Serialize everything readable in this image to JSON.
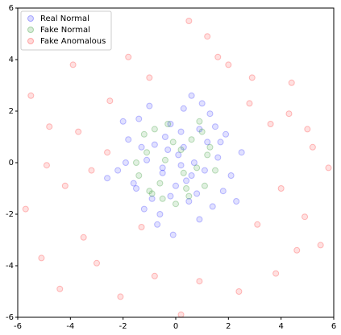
{
  "chart_data": {
    "type": "scatter",
    "xlim": [
      -6,
      6
    ],
    "ylim": [
      -6,
      6
    ],
    "xticks": [
      -6,
      -4,
      -2,
      0,
      2,
      4,
      6
    ],
    "yticks": [
      -6,
      -4,
      -2,
      0,
      2,
      4,
      6
    ],
    "legend": "upper left",
    "series": [
      {
        "name": "Real Normal",
        "color": "blue",
        "x": [
          0.1,
          -0.5,
          1.2,
          -1.3,
          0.8,
          -0.2,
          0.4,
          -0.9,
          1.6,
          -1.8,
          0.3,
          -0.6,
          2.1,
          -2.2,
          0.9,
          -1.1,
          0.0,
          1.4,
          -0.3,
          0.6,
          -1.5,
          1.9,
          -0.7,
          0.2,
          1.1,
          -2.0,
          0.5,
          -1.0,
          2.5,
          -0.4,
          1.3,
          -1.6,
          0.7,
          -0.1,
          1.8,
          -2.6,
          0.2,
          -0.8,
          1.0,
          -1.2,
          2.3,
          -0.5,
          0.9,
          -1.9,
          1.5,
          0.3,
          -0.2,
          1.7,
          -1.4,
          0.6
        ],
        "values": [
          0.3,
          -0.4,
          0.8,
          0.6,
          -1.2,
          1.5,
          -0.7,
          -1.4,
          0.2,
          0.9,
          2.1,
          -2.0,
          -0.5,
          -0.3,
          1.3,
          0.1,
          -0.9,
          -1.7,
          0.5,
          2.6,
          -1.0,
          1.1,
          -2.4,
          -0.1,
          -0.3,
          1.6,
          -1.5,
          2.2,
          0.4,
          1.0,
          1.9,
          -0.8,
          0.0,
          -2.8,
          -1.1,
          -0.6,
          1.2,
          0.7,
          2.3,
          -1.8,
          -1.5,
          -0.2,
          -2.2,
          0.0,
          1.4,
          0.6,
          -1.3,
          0.8,
          1.7,
          -0.5
        ]
      },
      {
        "name": "Fake Normal",
        "color": "green",
        "x": [
          0.2,
          -0.6,
          1.0,
          -1.1,
          0.5,
          -0.3,
          0.8,
          -0.9,
          1.3,
          -1.4,
          0.0,
          0.6,
          -0.4,
          1.1,
          -1.2,
          0.3,
          -0.8,
          1.5,
          -0.1,
          0.9,
          -1.5,
          0.4,
          -0.5,
          1.2,
          -1.0
        ],
        "values": [
          0.5,
          -0.8,
          1.2,
          0.4,
          -1.3,
          1.5,
          -0.2,
          -1.2,
          0.6,
          -0.5,
          -1.6,
          0.9,
          0.1,
          -0.9,
          1.1,
          -0.4,
          1.3,
          -0.3,
          0.8,
          1.6,
          0.0,
          -1.0,
          -1.4,
          0.3,
          -1.1
        ]
      },
      {
        "name": "Fake Anomalous",
        "color": "red",
        "x": [
          -5.5,
          -4.8,
          -3.9,
          -3.2,
          -2.5,
          -1.8,
          -1.0,
          0.5,
          1.2,
          2.0,
          2.8,
          3.6,
          4.4,
          5.2,
          5.8,
          -5.7,
          -4.2,
          -3.5,
          4.0,
          4.9,
          -5.1,
          -4.4,
          -3.0,
          3.1,
          4.6,
          5.5,
          -2.1,
          -0.8,
          0.9,
          2.4,
          3.8,
          -3.7,
          -2.6,
          -1.3,
          0.2,
          1.6,
          2.9,
          4.3,
          -4.9,
          5.0
        ],
        "values": [
          2.6,
          1.4,
          3.8,
          -0.3,
          2.4,
          4.1,
          3.3,
          5.5,
          4.9,
          3.8,
          2.3,
          1.5,
          3.1,
          0.6,
          -0.2,
          -1.8,
          -0.9,
          -2.9,
          -1.0,
          -2.1,
          -3.7,
          -4.9,
          -3.9,
          -2.4,
          -3.4,
          -3.2,
          -5.2,
          -4.4,
          -4.6,
          -5.0,
          -4.3,
          1.2,
          0.4,
          -2.5,
          -5.9,
          4.1,
          3.3,
          1.9,
          -0.1,
          1.3
        ]
      }
    ]
  }
}
